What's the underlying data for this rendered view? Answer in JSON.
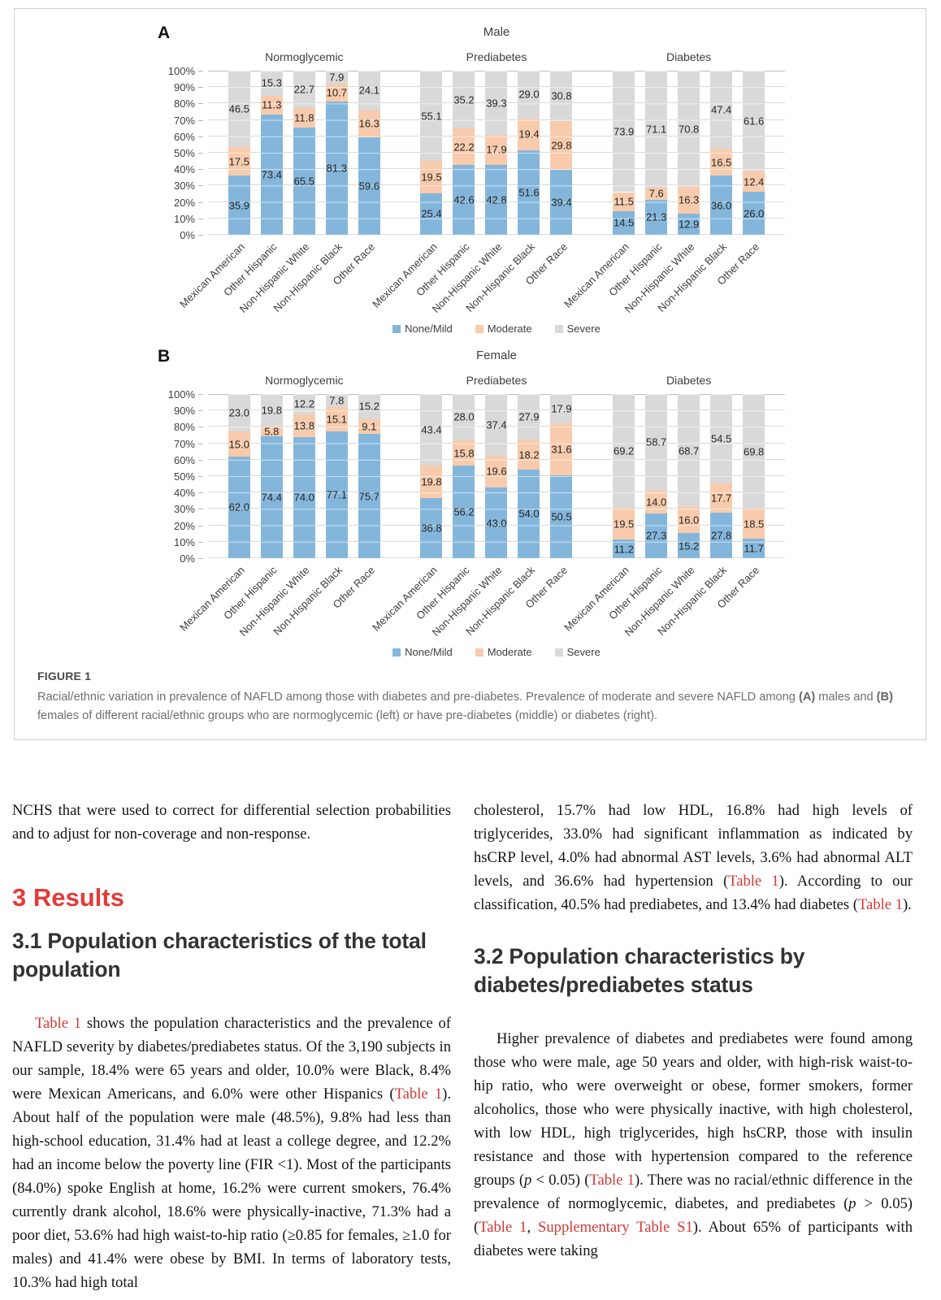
{
  "figure": {
    "caption_title": "FIGURE 1",
    "caption_segments": [
      {
        "t": "Racial/ethnic variation in prevalence of NAFLD among those with diabetes and pre-diabetes. Prevalence of moderate and severe NAFLD among "
      },
      {
        "t": "(A)",
        "s": "b"
      },
      {
        "t": " males and "
      },
      {
        "t": "(B)",
        "s": "b"
      },
      {
        "t": " females of different racial/ethnic groups who are normoglycemic (left) or have pre-diabetes (middle) or diabetes (right)."
      }
    ],
    "legend": [
      {
        "label": "None/Mild",
        "color": "#84B6DB"
      },
      {
        "label": "Moderate",
        "color": "#F7CBAC"
      },
      {
        "label": "Severe",
        "color": "#D9D9D9"
      }
    ],
    "yticks": [
      "100%",
      "90%",
      "80%",
      "70%",
      "60%",
      "50%",
      "40%",
      "30%",
      "20%",
      "10%",
      "0%"
    ]
  },
  "chart_data": [
    {
      "type": "bar",
      "stacked": true,
      "panel": "A",
      "title": "Male",
      "categories": [
        "Mexican American",
        "Other Hispanic",
        "Non-Hispanic White",
        "Non-Hispanic Black",
        "Other Race"
      ],
      "groups": [
        {
          "title": "Normoglycemic",
          "series": [
            {
              "name": "None/Mild",
              "values": [
                35.9,
                73.4,
                65.5,
                81.3,
                59.6
              ]
            },
            {
              "name": "Moderate",
              "values": [
                17.5,
                11.3,
                11.8,
                10.7,
                16.3
              ]
            },
            {
              "name": "Severe",
              "values": [
                46.5,
                15.3,
                22.7,
                7.9,
                24.1
              ]
            }
          ]
        },
        {
          "title": "Prediabetes",
          "series": [
            {
              "name": "None/Mild",
              "values": [
                25.4,
                42.6,
                42.8,
                51.6,
                39.4
              ]
            },
            {
              "name": "Moderate",
              "values": [
                19.5,
                22.2,
                17.9,
                19.4,
                29.8
              ]
            },
            {
              "name": "Severe",
              "values": [
                55.1,
                35.2,
                39.3,
                29.0,
                30.8
              ]
            }
          ]
        },
        {
          "title": "Diabetes",
          "series": [
            {
              "name": "None/Mild",
              "values": [
                14.5,
                21.3,
                12.9,
                36.0,
                26.0
              ]
            },
            {
              "name": "Moderate",
              "values": [
                11.5,
                7.6,
                16.3,
                16.5,
                12.4
              ]
            },
            {
              "name": "Severe",
              "values": [
                73.9,
                71.1,
                70.8,
                47.4,
                61.6
              ]
            }
          ]
        }
      ],
      "ylim": [
        0,
        100
      ],
      "grid": true,
      "legend_position": "bottom"
    },
    {
      "type": "bar",
      "stacked": true,
      "panel": "B",
      "title": "Female",
      "categories": [
        "Mexican American",
        "Other Hispanic",
        "Non-Hispanic White",
        "Non-Hispanic Black",
        "Other Race"
      ],
      "groups": [
        {
          "title": "Normoglycemic",
          "series": [
            {
              "name": "None/Mild",
              "values": [
                62.0,
                74.4,
                74.0,
                77.1,
                75.7
              ]
            },
            {
              "name": "Moderate",
              "values": [
                15.0,
                5.8,
                13.8,
                15.1,
                9.1
              ]
            },
            {
              "name": "Severe",
              "values": [
                23.0,
                19.8,
                12.2,
                7.8,
                15.2
              ]
            }
          ]
        },
        {
          "title": "Prediabetes",
          "series": [
            {
              "name": "None/Mild",
              "values": [
                36.8,
                56.2,
                43.0,
                54.0,
                50.5
              ]
            },
            {
              "name": "Moderate",
              "values": [
                19.8,
                15.8,
                19.6,
                18.2,
                31.6
              ]
            },
            {
              "name": "Severe",
              "values": [
                43.4,
                28.0,
                37.4,
                27.9,
                17.9
              ]
            }
          ]
        },
        {
          "title": "Diabetes",
          "series": [
            {
              "name": "None/Mild",
              "values": [
                11.2,
                27.3,
                15.2,
                27.8,
                11.7
              ]
            },
            {
              "name": "Moderate",
              "values": [
                19.5,
                14.0,
                16.0,
                17.7,
                18.5
              ]
            },
            {
              "name": "Severe",
              "values": [
                69.2,
                58.7,
                68.7,
                54.5,
                69.8
              ]
            }
          ]
        }
      ],
      "ylim": [
        0,
        100
      ],
      "grid": true,
      "legend_position": "bottom"
    }
  ],
  "article": {
    "left": [
      {
        "kind": "p",
        "segments": [
          {
            "t": "NCHS that were used to correct for differential selection probabilities and to adjust for non-coverage and non-response."
          }
        ]
      },
      {
        "kind": "h1",
        "text": "3 Results"
      },
      {
        "kind": "h2",
        "text": "3.1 Population characteristics of the total population"
      },
      {
        "kind": "p",
        "indent": true,
        "gap": true,
        "segments": [
          {
            "t": "Table 1",
            "s": "link"
          },
          {
            "t": " shows the population characteristics and the prevalence of NAFLD severity by diabetes/prediabetes status. Of the 3,190 subjects in our sample, 18.4% were 65 years and older, 10.0% were Black, 8.4% were Mexican Americans, and 6.0% were other Hispanics ("
          },
          {
            "t": "Table 1",
            "s": "link"
          },
          {
            "t": "). About half of the population were male (48.5%), 9.8% had less than high-school education, 31.4% had at least a college degree, and 12.2% had an income below the poverty line (FIR <1). Most of the participants (84.0%) spoke English at home, 16.2% were current smokers, 76.4% currently drank alcohol, 18.6% were physically-inactive, 71.3% had a poor diet, 53.6% had high waist-to-hip ratio (≥0.85 for females, ≥1.0 for males) and 41.4% were obese by BMI. In terms of laboratory tests, 10.3% had high total"
          }
        ]
      }
    ],
    "right": [
      {
        "kind": "p",
        "segments": [
          {
            "t": "cholesterol, 15.7% had low HDL, 16.8% had high levels of triglycerides, 33.0% had significant inflammation as indicated by hsCRP level, 4.0% had abnormal AST levels, 3.6% had abnormal ALT levels, and 36.6% had hypertension ("
          },
          {
            "t": "Table 1",
            "s": "link"
          },
          {
            "t": "). According to our classification, 40.5% had prediabetes, and 13.4% had diabetes ("
          },
          {
            "t": "Table 1",
            "s": "link"
          },
          {
            "t": ")."
          }
        ]
      },
      {
        "kind": "h2",
        "first_right": true,
        "text": "3.2 Population characteristics by diabetes/prediabetes status"
      },
      {
        "kind": "p",
        "indent": true,
        "gap": true,
        "segments": [
          {
            "t": "Higher prevalence of diabetes and prediabetes were found among those who were male, age 50 years and older, with high-risk waist-to-hip ratio, who were overweight or obese, former smokers, former alcoholics, those who were physically inactive, with high cholesterol, with low HDL, high triglycerides, high hsCRP, those with insulin resistance and those with hypertension compared to the reference groups ("
          },
          {
            "t": "p",
            "s": "i"
          },
          {
            "t": " < 0.05) ("
          },
          {
            "t": "Table 1",
            "s": "link"
          },
          {
            "t": "). There was no racial/ethnic difference in the prevalence of normoglycemic, diabetes, and prediabetes ("
          },
          {
            "t": "p",
            "s": "i"
          },
          {
            "t": " > 0.05) ("
          },
          {
            "t": "Table 1",
            "s": "link"
          },
          {
            "t": ", "
          },
          {
            "t": "Supplementary Table S1",
            "s": "link"
          },
          {
            "t": "). About 65% of participants with diabetes were taking"
          }
        ]
      }
    ]
  }
}
